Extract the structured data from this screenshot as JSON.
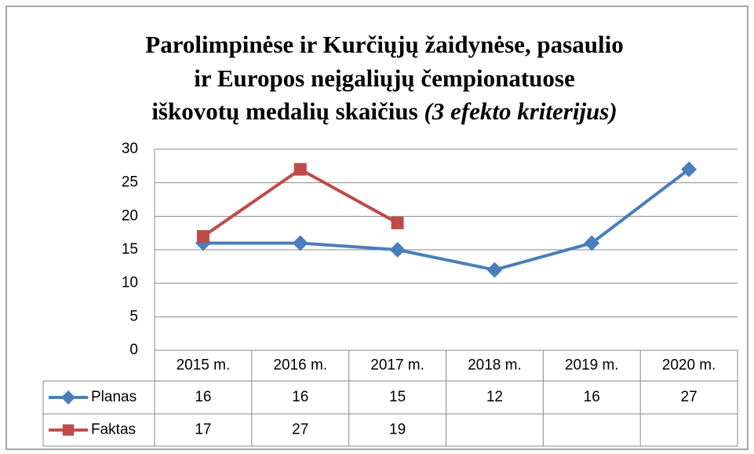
{
  "chart_data": {
    "type": "line",
    "title": [
      "Parolimpinėse ir Kurčiųjų žaidynėse, pasaulio",
      "ir Europos neįgaliųjų čempionatuose",
      "iškovotų medalių skaičius"
    ],
    "title_note": "(3 efekto kriterijus)",
    "categories": [
      "2015 m.",
      "2016 m.",
      "2017 m.",
      "2018 m.",
      "2019 m.",
      "2020 m."
    ],
    "series": [
      {
        "name": "Planas",
        "color": "#4a7ebb",
        "marker": "diamond",
        "values": [
          16,
          16,
          15,
          12,
          16,
          27
        ]
      },
      {
        "name": "Faktas",
        "color": "#be4b48",
        "marker": "square",
        "values": [
          17,
          27,
          19,
          null,
          null,
          null
        ]
      }
    ],
    "ylim": [
      0,
      30
    ],
    "yticks": [
      0,
      5,
      10,
      15,
      20,
      25,
      30
    ],
    "grid": true,
    "data_table": true
  }
}
